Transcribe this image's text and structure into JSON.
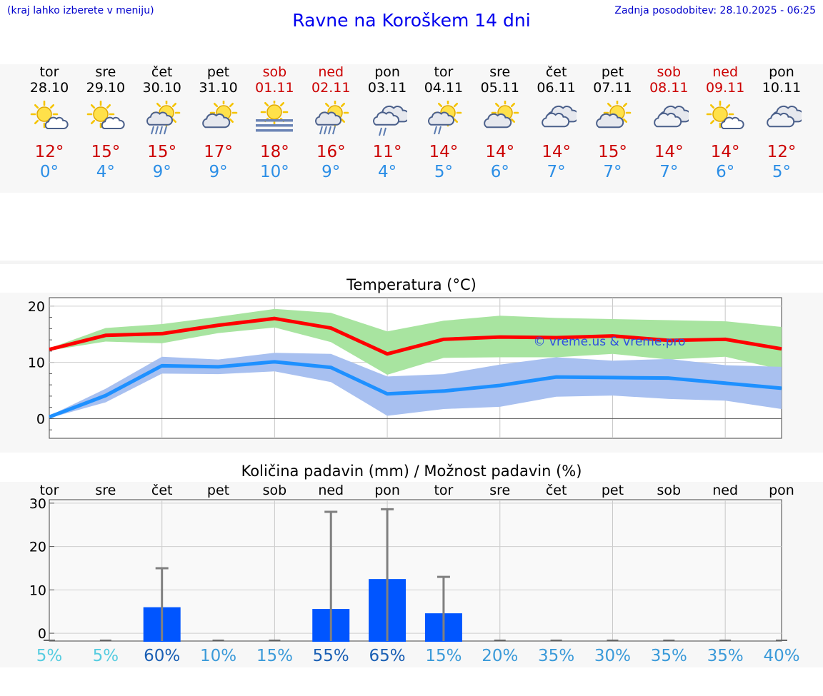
{
  "header": {
    "menu_note": "(kraj lahko izberete v meniju)",
    "title": "Ravne na Koroškem 14 dni",
    "updated": "Zadnja posodobitev: 28.10.2025 - 06:25"
  },
  "colors": {
    "weekday": "#000000",
    "weekend": "#cc0000",
    "tmax": "#cc0000",
    "tmin": "#2b8ee6",
    "max_line": "#ff0000",
    "max_band": "#a8e4a0",
    "min_line": "#1e90ff",
    "min_band": "#a8c0f0",
    "bar": "#0055ff",
    "error_bar": "#808080"
  },
  "days": [
    {
      "name": "tor",
      "date": "28.10",
      "icon": "sun-cloud",
      "tmax": "12°",
      "tmin": "0°",
      "weekend": false
    },
    {
      "name": "sre",
      "date": "29.10",
      "icon": "sun-cloud",
      "tmax": "15°",
      "tmin": "4°",
      "weekend": false
    },
    {
      "name": "čet",
      "date": "30.10",
      "icon": "sun-cloud-rain",
      "tmax": "15°",
      "tmin": "9°",
      "weekend": false
    },
    {
      "name": "pet",
      "date": "31.10",
      "icon": "cloud-sun",
      "tmax": "17°",
      "tmin": "9°",
      "weekend": false
    },
    {
      "name": "sob",
      "date": "01.11",
      "icon": "sun-fog",
      "tmax": "18°",
      "tmin": "10°",
      "weekend": true
    },
    {
      "name": "ned",
      "date": "02.11",
      "icon": "sun-cloud-rain",
      "tmax": "16°",
      "tmin": "9°",
      "weekend": true
    },
    {
      "name": "pon",
      "date": "03.11",
      "icon": "cloud-rain",
      "tmax": "11°",
      "tmin": "4°",
      "weekend": false
    },
    {
      "name": "tor",
      "date": "04.11",
      "icon": "sun-cloud-rain-light",
      "tmax": "14°",
      "tmin": "5°",
      "weekend": false
    },
    {
      "name": "sre",
      "date": "05.11",
      "icon": "cloud-sun",
      "tmax": "14°",
      "tmin": "6°",
      "weekend": false
    },
    {
      "name": "čet",
      "date": "06.11",
      "icon": "cloud",
      "tmax": "14°",
      "tmin": "7°",
      "weekend": false
    },
    {
      "name": "pet",
      "date": "07.11",
      "icon": "cloud-sun",
      "tmax": "15°",
      "tmin": "7°",
      "weekend": false
    },
    {
      "name": "sob",
      "date": "08.11",
      "icon": "cloud",
      "tmax": "14°",
      "tmin": "7°",
      "weekend": true
    },
    {
      "name": "ned",
      "date": "09.11",
      "icon": "sun-cloud",
      "tmax": "14°",
      "tmin": "6°",
      "weekend": true
    },
    {
      "name": "pon",
      "date": "10.11",
      "icon": "cloud",
      "tmax": "12°",
      "tmin": "5°",
      "weekend": false
    }
  ],
  "chart_data": [
    {
      "type": "line",
      "title": "Temperatura (°C)",
      "categories": [
        "28.10",
        "29.10",
        "30.10",
        "31.10",
        "01.11",
        "02.11",
        "03.11",
        "04.11",
        "05.11",
        "06.11",
        "07.11",
        "08.11",
        "09.11",
        "10.11"
      ],
      "yticks": [
        0,
        10,
        20
      ],
      "ylim": [
        -3.5,
        21.5
      ],
      "watermark": "© vreme.us & vreme.pro",
      "series": [
        {
          "name": "max",
          "values": [
            12.3,
            14.8,
            15.1,
            16.6,
            17.8,
            16.1,
            11.5,
            14.1,
            14.5,
            14.4,
            14.7,
            13.9,
            14.1,
            12.4
          ],
          "band_low": [
            12.1,
            13.7,
            13.4,
            15.2,
            16.2,
            13.6,
            7.8,
            10.8,
            10.9,
            10.9,
            11.5,
            10.5,
            11.0,
            8.7
          ],
          "band_high": [
            12.5,
            16.1,
            16.8,
            18.1,
            19.5,
            18.8,
            15.5,
            17.4,
            18.3,
            17.9,
            17.7,
            17.5,
            17.3,
            16.3
          ]
        },
        {
          "name": "min",
          "values": [
            0.3,
            4.1,
            9.4,
            9.2,
            10.1,
            9.1,
            4.4,
            4.9,
            5.9,
            7.4,
            7.3,
            7.2,
            6.3,
            5.4
          ],
          "band_low": [
            0.1,
            2.9,
            8.0,
            7.9,
            8.4,
            6.5,
            0.5,
            1.7,
            2.1,
            3.9,
            4.1,
            3.5,
            3.2,
            1.7
          ],
          "band_high": [
            0.5,
            5.3,
            11.0,
            10.5,
            11.7,
            11.5,
            7.5,
            7.9,
            9.6,
            10.9,
            10.3,
            10.6,
            9.5,
            9.2
          ]
        }
      ]
    },
    {
      "type": "bar",
      "title": "Količina padavin (mm) / Možnost padavin (%)",
      "categories": [
        "tor",
        "sre",
        "čet",
        "pet",
        "sob",
        "ned",
        "pon",
        "tor",
        "sre",
        "čet",
        "pet",
        "sob",
        "ned",
        "pon"
      ],
      "yticks": [
        0,
        10,
        20,
        30
      ],
      "ylim": [
        -1.8,
        30.8
      ],
      "values": [
        0,
        0,
        6.0,
        0,
        0,
        5.6,
        12.5,
        4.6,
        0,
        0,
        0,
        0,
        0,
        0
      ],
      "error_high": [
        0,
        0,
        15,
        0,
        0,
        28,
        28.6,
        13,
        0,
        0,
        0,
        0,
        0,
        0
      ],
      "probability": [
        "5%",
        "5%",
        "60%",
        "10%",
        "15%",
        "55%",
        "65%",
        "15%",
        "20%",
        "35%",
        "30%",
        "35%",
        "35%",
        "40%"
      ],
      "probability_colors": [
        "#55cce0",
        "#55cce0",
        "#1a5fb4",
        "#3a9ad9",
        "#3a9ad9",
        "#1a5fb4",
        "#1a5fb4",
        "#3a9ad9",
        "#3a9ad9",
        "#3a9ad9",
        "#3a9ad9",
        "#3a9ad9",
        "#3a9ad9",
        "#3a9ad9"
      ]
    }
  ]
}
